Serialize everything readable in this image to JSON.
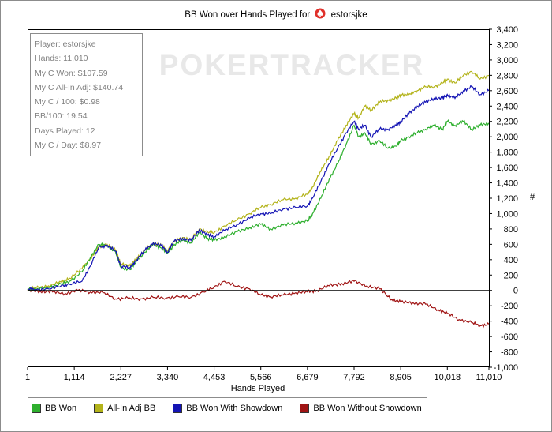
{
  "title_prefix": "BB Won over Hands Played for",
  "title_player": "estorsjke",
  "watermark": "POKERTRACKER",
  "stats": [
    "Player: estorsjke",
    "Hands: 11,010",
    "My C Won: $107.59",
    "My C All-In Adj: $140.74",
    "My C / 100: $0.98",
    "BB/100: 19.54",
    "Days Played: 12",
    "My C / Day: $8.97"
  ],
  "colors": {
    "bb_won": "#2eaf2e",
    "all_in_adj": "#b3b31a",
    "showdown": "#1414b4",
    "non_showdown": "#a01414",
    "logo_red": "#e0302a"
  },
  "chart_data": {
    "type": "line",
    "title": "BB Won over Hands Played for estorsjke",
    "xlabel": "Hands Played",
    "ylabel": "#",
    "xlim": [
      1,
      11010
    ],
    "ylim": [
      -1000,
      3400
    ],
    "x_ticks": [
      1,
      1114,
      2227,
      3340,
      4453,
      5566,
      6679,
      7792,
      8905,
      10018,
      11010
    ],
    "x_tick_labels": [
      "1",
      "1,114",
      "2,227",
      "3,340",
      "4,453",
      "5,566",
      "6,679",
      "7,792",
      "8,905",
      "10,018",
      "11,010"
    ],
    "y_ticks": [
      -1000,
      -800,
      -600,
      -400,
      -200,
      0,
      200,
      400,
      600,
      800,
      1000,
      1200,
      1400,
      1600,
      1800,
      2000,
      2200,
      2400,
      2600,
      2800,
      3000,
      3200,
      3400
    ],
    "y_tick_labels": [
      "-1,000",
      "-800",
      "-600",
      "-400",
      "-200",
      "0",
      "200",
      "400",
      "600",
      "800",
      "1,000",
      "1,200",
      "1,400",
      "1,600",
      "1,800",
      "2,000",
      "2,200",
      "2,400",
      "2,600",
      "2,800",
      "3,000",
      "3,200",
      "3,400"
    ],
    "grid": false,
    "legend_position": "bottom",
    "series": [
      {
        "name": "BB Won",
        "color": "#2eaf2e",
        "x": [
          1,
          200,
          500,
          800,
          1000,
          1300,
          1500,
          1700,
          1900,
          2100,
          2227,
          2450,
          2600,
          2800,
          3000,
          3200,
          3340,
          3500,
          3700,
          3900,
          4100,
          4300,
          4453,
          4700,
          5000,
          5300,
          5566,
          5800,
          6100,
          6400,
          6679,
          6800,
          7000,
          7200,
          7400,
          7600,
          7792,
          7900,
          8050,
          8200,
          8400,
          8600,
          8800,
          8905,
          9100,
          9300,
          9500,
          9700,
          9900,
          10018,
          10200,
          10400,
          10600,
          10800,
          11010
        ],
        "y": [
          20,
          10,
          40,
          80,
          120,
          240,
          430,
          600,
          580,
          500,
          300,
          270,
          380,
          500,
          600,
          550,
          480,
          600,
          650,
          620,
          750,
          680,
          650,
          700,
          760,
          820,
          860,
          800,
          850,
          880,
          900,
          1000,
          1200,
          1450,
          1650,
          1900,
          2150,
          2000,
          2050,
          1900,
          1950,
          1850,
          1880,
          1950,
          2000,
          2050,
          2100,
          2150,
          2100,
          2200,
          2150,
          2200,
          2100,
          2150,
          2180
        ]
      },
      {
        "name": "All-In Adj BB",
        "color": "#b3b31a",
        "x": [
          1,
          200,
          500,
          800,
          1000,
          1300,
          1500,
          1700,
          1900,
          2100,
          2227,
          2450,
          2600,
          2800,
          3000,
          3200,
          3340,
          3500,
          3700,
          3900,
          4100,
          4300,
          4453,
          4700,
          5000,
          5300,
          5566,
          5800,
          6100,
          6400,
          6679,
          6800,
          7000,
          7200,
          7400,
          7600,
          7792,
          7900,
          8050,
          8200,
          8400,
          8600,
          8800,
          8905,
          9100,
          9300,
          9500,
          9700,
          9900,
          10018,
          10200,
          10400,
          10600,
          10800,
          11010
        ],
        "y": [
          20,
          30,
          60,
          110,
          160,
          280,
          420,
          560,
          600,
          520,
          350,
          320,
          420,
          520,
          620,
          580,
          520,
          640,
          690,
          660,
          800,
          760,
          750,
          840,
          920,
          1000,
          1080,
          1120,
          1180,
          1200,
          1250,
          1350,
          1550,
          1750,
          1950,
          2150,
          2300,
          2250,
          2400,
          2350,
          2450,
          2480,
          2500,
          2550,
          2550,
          2600,
          2650,
          2650,
          2700,
          2750,
          2700,
          2800,
          2850,
          2750,
          2800
        ]
      },
      {
        "name": "BB Won With Showdown",
        "color": "#1414b4",
        "x": [
          1,
          200,
          500,
          800,
          1000,
          1300,
          1500,
          1700,
          1900,
          2100,
          2227,
          2450,
          2600,
          2800,
          3000,
          3200,
          3340,
          3500,
          3700,
          3900,
          4100,
          4300,
          4453,
          4700,
          5000,
          5300,
          5566,
          5800,
          6100,
          6400,
          6679,
          6800,
          7000,
          7200,
          7400,
          7600,
          7792,
          7900,
          8050,
          8200,
          8400,
          8600,
          8800,
          8905,
          9100,
          9300,
          9500,
          9700,
          9900,
          10018,
          10200,
          10400,
          10600,
          10800,
          11010
        ],
        "y": [
          20,
          10,
          20,
          60,
          80,
          120,
          320,
          560,
          590,
          510,
          320,
          290,
          400,
          520,
          620,
          580,
          500,
          640,
          680,
          650,
          790,
          720,
          700,
          780,
          860,
          940,
          1000,
          1000,
          1060,
          1080,
          1100,
          1200,
          1420,
          1650,
          1850,
          2050,
          2200,
          2100,
          2150,
          2000,
          2100,
          2100,
          2150,
          2200,
          2300,
          2400,
          2450,
          2500,
          2500,
          2550,
          2500,
          2600,
          2650,
          2550,
          2600
        ]
      },
      {
        "name": "BB Won Without Showdown",
        "color": "#a01414",
        "x": [
          1,
          300,
          600,
          900,
          1200,
          1500,
          1800,
          2100,
          2400,
          2700,
          3000,
          3300,
          3600,
          3900,
          4200,
          4453,
          4700,
          5000,
          5300,
          5566,
          5800,
          6100,
          6400,
          6679,
          6900,
          7200,
          7500,
          7792,
          8100,
          8400,
          8700,
          8905,
          9200,
          9500,
          9800,
          10018,
          10300,
          10600,
          10800,
          11010
        ],
        "y": [
          0,
          -10,
          -20,
          -40,
          0,
          -20,
          -30,
          -110,
          -100,
          -110,
          -90,
          -100,
          -80,
          -90,
          -20,
          40,
          120,
          50,
          20,
          -60,
          -80,
          -60,
          -30,
          -20,
          0,
          60,
          90,
          120,
          60,
          20,
          -120,
          -150,
          -160,
          -180,
          -250,
          -300,
          -380,
          -420,
          -460,
          -440
        ]
      }
    ]
  }
}
